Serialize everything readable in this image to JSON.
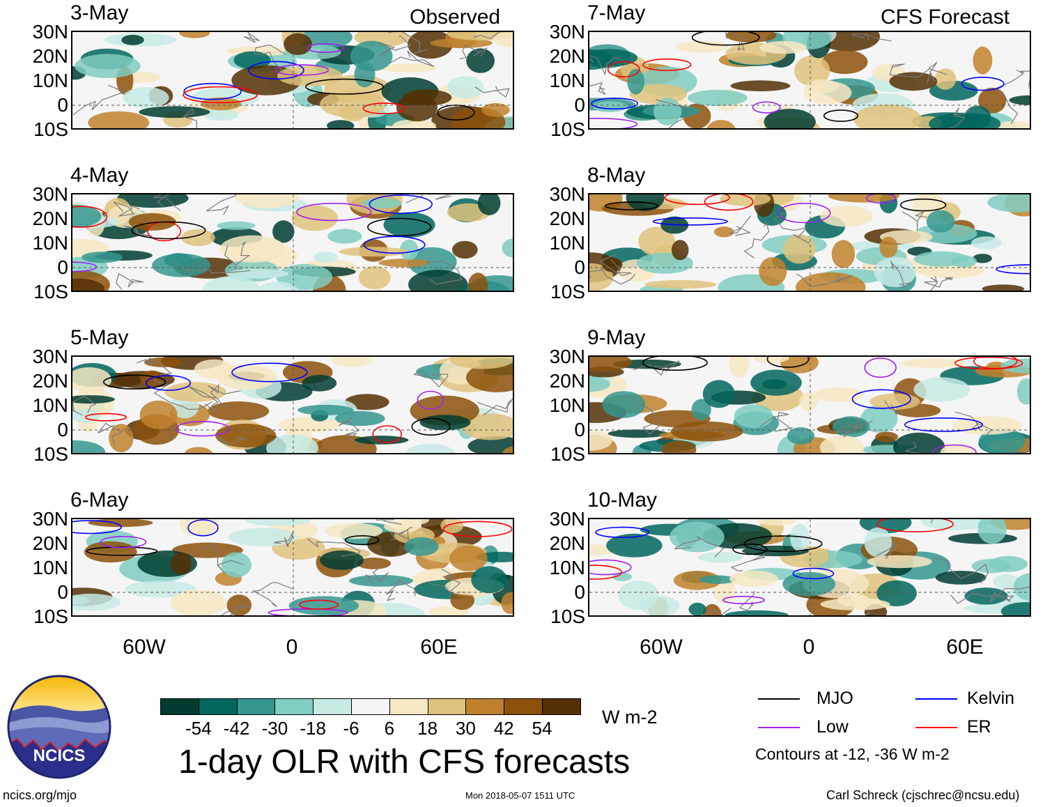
{
  "header": {
    "left_title": "Observed",
    "right_title": "CFS Forecast"
  },
  "panels": [
    {
      "date": "3-May"
    },
    {
      "date": "4-May"
    },
    {
      "date": "5-May"
    },
    {
      "date": "6-May"
    },
    {
      "date": "7-May"
    },
    {
      "date": "8-May"
    },
    {
      "date": "9-May"
    },
    {
      "date": "10-May"
    }
  ],
  "lat_labels": [
    "30N",
    "20N",
    "10N",
    "0",
    "10S"
  ],
  "lon_labels": [
    "60W",
    "0",
    "60E"
  ],
  "colorbar": {
    "colors": [
      "#003c30",
      "#01665e",
      "#35978f",
      "#80cdc1",
      "#c7eae5",
      "#f5f5f5",
      "#f6e8c3",
      "#dfc27d",
      "#bf812d",
      "#8c510a",
      "#543005"
    ],
    "ticks": [
      "-54",
      "-42",
      "-30",
      "-18",
      "-6",
      "6",
      "18",
      "30",
      "42",
      "54"
    ],
    "units": "W m-2"
  },
  "title": "1-day OLR with CFS forecasts",
  "legend": {
    "items": [
      {
        "label": "MJO",
        "color": "#000000"
      },
      {
        "label": "Kelvin",
        "color": "#0000ff"
      },
      {
        "label": "Low",
        "color": "#a020f0"
      },
      {
        "label": "ER",
        "color": "#ff0000"
      }
    ],
    "note": "Contours at -12, -36 W m-2"
  },
  "logo": {
    "text": "NCICS"
  },
  "footer": {
    "url": "ncics.org/mjo",
    "timestamp": "Mon 2018-05-07 1511 UTC",
    "credit": "Carl Schreck (cjschrec@ncsu.edu)"
  }
}
